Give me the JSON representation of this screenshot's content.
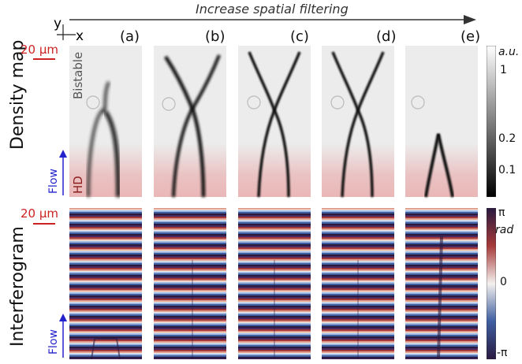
{
  "header": {
    "title": "Increase spatial filtering"
  },
  "axes": {
    "y": "y",
    "x": "x"
  },
  "panels": [
    "(a)",
    "(b)",
    "(c)",
    "(d)",
    "(e)"
  ],
  "top_row": {
    "title": "Density map",
    "scalebar": "20 µm",
    "bistable": "Bistable",
    "hd": "HD",
    "flow": "Flow"
  },
  "bottom_row": {
    "title": "Interferogram",
    "scalebar": "20 µm",
    "flow": "Flow"
  },
  "colorbar_density": {
    "unit": "a.u.",
    "ticks": [
      "1",
      "0.2",
      "0.1"
    ]
  },
  "colorbar_phase": {
    "unit": "rad",
    "ticks": [
      "π",
      "0",
      "-π"
    ]
  },
  "colors": {
    "hd_tint": "#e9a0a0",
    "scalebar": "#cc2222",
    "flow": "#2222cc"
  }
}
